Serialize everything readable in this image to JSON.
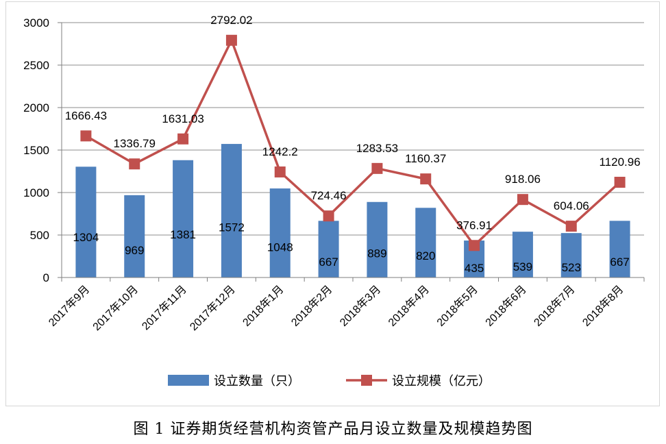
{
  "figure_caption": "图 1  证券期货经营机构资管产品月设立数量及规模趋势图",
  "chart_data": {
    "type": "bar",
    "categories": [
      "2017年9月",
      "2017年10月",
      "2017年11月",
      "2017年12月",
      "2018年1月",
      "2018年2月",
      "2018年3月",
      "2018年4月",
      "2018年5月",
      "2018年6月",
      "2018年7月",
      "2018年8月"
    ],
    "series": [
      {
        "name": "设立数量（只）",
        "type": "bar",
        "color": "#4f81bd",
        "values": [
          1304,
          969,
          1381,
          1572,
          1048,
          667,
          889,
          820,
          435,
          539,
          523,
          667
        ],
        "labels": [
          "1304",
          "969",
          "1381",
          "1572",
          "1048",
          "667",
          "889",
          "820",
          "435",
          "539",
          "523",
          "667"
        ]
      },
      {
        "name": "设立规模（亿元）",
        "type": "line",
        "color": "#c0504d",
        "values": [
          1666.43,
          1336.79,
          1631.03,
          2792.02,
          1242.2,
          724.46,
          1283.53,
          1160.37,
          376.91,
          918.06,
          604.06,
          1120.96
        ],
        "labels": [
          "1666.43",
          "1336.79",
          "1631.03",
          "2792.02",
          "1242.2",
          "724.46",
          "1283.53",
          "1160.37",
          "376.91",
          "918.06",
          "604.06",
          "1120.96"
        ]
      }
    ],
    "ylim": [
      0,
      3000
    ],
    "yticks": [
      "0",
      "500",
      "1000",
      "1500",
      "2000",
      "2500",
      "3000"
    ],
    "grid": true,
    "legend_position": "bottom"
  }
}
